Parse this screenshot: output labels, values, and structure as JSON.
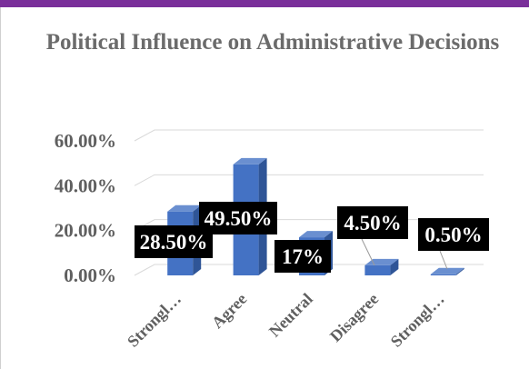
{
  "chart_data": {
    "type": "bar",
    "title": "Political Influence on Administrative Decisions",
    "categories": [
      "Strongl…",
      "Agree",
      "Neutral",
      "Disagree",
      "Strongl…"
    ],
    "values": [
      28.5,
      49.5,
      17,
      4.5,
      0.5
    ],
    "data_labels": [
      "28.50%",
      "49.50%",
      "17%",
      "4.50%",
      "0.50%"
    ],
    "yticks": [
      "0.00%",
      "20.00%",
      "40.00%",
      "60.00%"
    ],
    "ylim": [
      0,
      60
    ],
    "grid": true,
    "style": "3d-column",
    "colors": {
      "bar": "#4472c4",
      "bar_side": "#2f5597",
      "bar_top": "#6a8fd0",
      "label_bg": "#000000",
      "label_text": "#ffffff",
      "axis_text": "#5f5f5f",
      "grid": "#d9d9d9",
      "frame": "#7a2f9a"
    }
  }
}
